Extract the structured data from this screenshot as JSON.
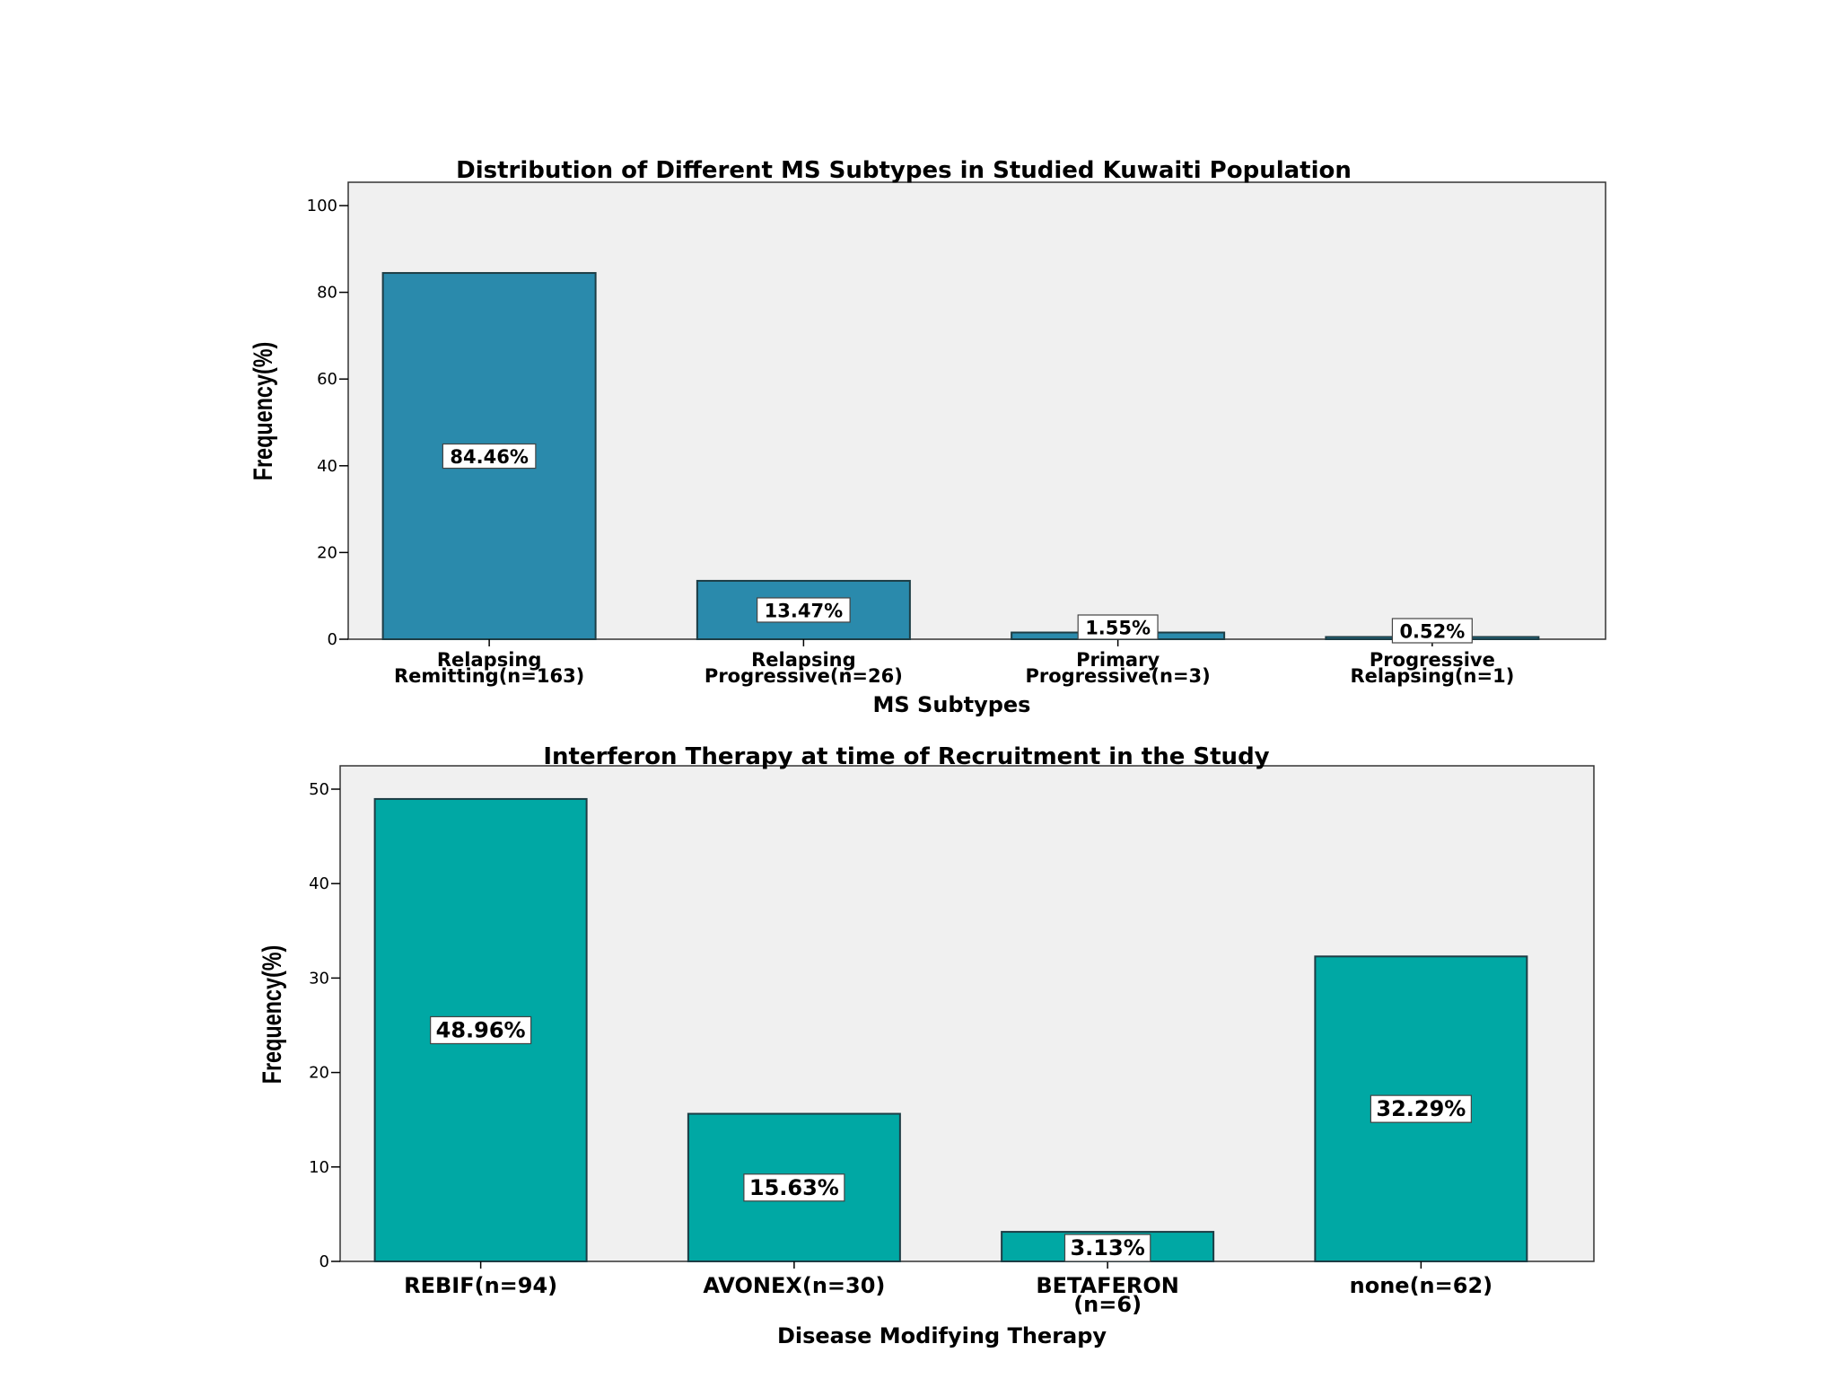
{
  "chart_data": [
    {
      "type": "bar",
      "title": "Distribution of Different MS  Subtypes in Studied Kuwaiti Population",
      "xlabel": "MS Subtypes",
      "ylabel": "Frequency(%)",
      "ylim": [
        0,
        100
      ],
      "yticks": [
        0,
        20,
        40,
        60,
        80,
        100
      ],
      "categories": [
        [
          "Relapsing",
          "Remitting(n=163)"
        ],
        [
          "Relapsing",
          "Progressive(n=26)"
        ],
        [
          "Primary",
          "Progressive(n=3)"
        ],
        [
          "Progressive",
          "Relapsing(n=1)"
        ]
      ],
      "values": [
        84.46,
        13.47,
        1.55,
        0.52
      ],
      "data_labels": [
        "84.46%",
        "13.47%",
        "1.55%",
        "0.52%"
      ],
      "bar_color": "#2a8aac",
      "plot_bg": "#f0f0f0",
      "grid": false
    },
    {
      "type": "bar",
      "title": "Interferon Therapy at time of Recruitment in the Study",
      "xlabel": "Disease Modifying Therapy",
      "ylabel": "Frequency(%)",
      "ylim": [
        0,
        50
      ],
      "yticks": [
        0,
        10,
        20,
        30,
        40,
        50
      ],
      "categories": [
        [
          "REBIF(n=94)"
        ],
        [
          "AVONEX(n=30)"
        ],
        [
          "BETAFERON",
          "(n=6)"
        ],
        [
          "none(n=62)"
        ]
      ],
      "values": [
        48.96,
        15.63,
        3.13,
        32.29
      ],
      "data_labels": [
        "48.96%",
        "15.63%",
        "3.13%",
        "32.29%"
      ],
      "bar_color": "#00a8a4",
      "plot_bg": "#f0f0f0",
      "grid": false
    }
  ]
}
